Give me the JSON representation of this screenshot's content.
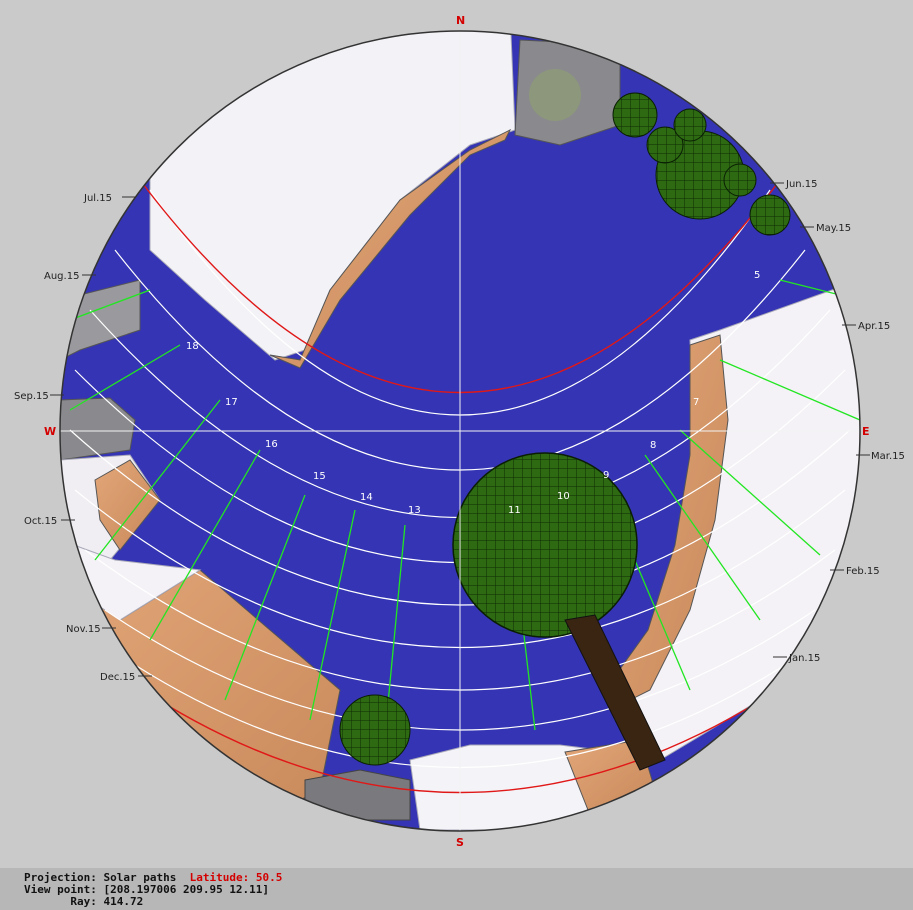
{
  "compass": {
    "north": "N",
    "south": "S",
    "east": "E",
    "west": "W"
  },
  "months": [
    {
      "label": "Jul.15"
    },
    {
      "label": "Aug.15"
    },
    {
      "label": "Sep.15"
    },
    {
      "label": "Oct.15"
    },
    {
      "label": "Nov.15"
    },
    {
      "label": "Dec.15"
    },
    {
      "label": "Jun.15"
    },
    {
      "label": "May.15"
    },
    {
      "label": "Apr.15"
    },
    {
      "label": "Mar.15"
    },
    {
      "label": "Feb.15"
    },
    {
      "label": "Jan.15"
    }
  ],
  "hours": [
    "5",
    "7",
    "8",
    "9",
    "10",
    "11",
    "13",
    "14",
    "15",
    "16",
    "17",
    "18"
  ],
  "info": {
    "projection_label": "Projection:",
    "projection_value": "Solar paths",
    "latitude_label": "Latitude:",
    "latitude_value": "50.5",
    "viewpoint_label": "View point:",
    "viewpoint_value": "[208.197006 209.95 12.11]",
    "ray_label": "Ray:",
    "ray_value": "414.72"
  },
  "colors": {
    "sky": "#3434b4",
    "background": "#cacaca",
    "tree": "#2d6a12",
    "wall": "#d89a6a",
    "hour_line": "#22e622",
    "solstice": "#e01818",
    "compass_text": "#d40000"
  }
}
